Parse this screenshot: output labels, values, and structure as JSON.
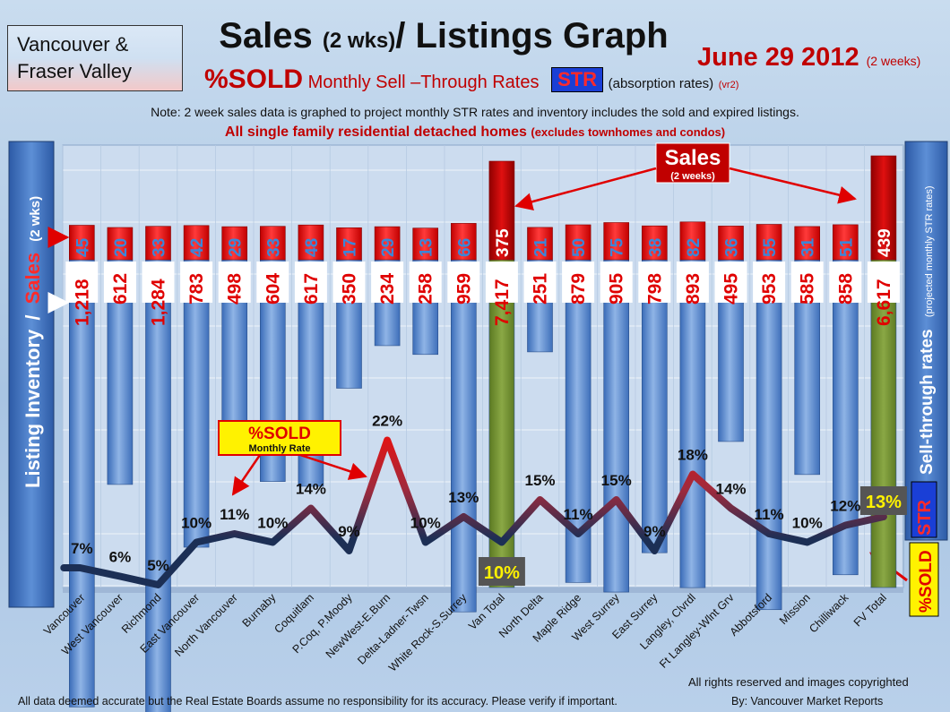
{
  "header": {
    "region": [
      "Vancouver &",
      "Fraser Valley"
    ],
    "title_main": "Sales",
    "title_small": "(2 wks)",
    "title_rest": "/ Listings Graph",
    "date": "June 29 2012",
    "date_note": "(2 weeks)",
    "subtitle_sold": "%SOLD",
    "subtitle_monthly": "Monthly Sell –Through Rates",
    "subtitle_str": "STR",
    "subtitle_absorption": "(absorption rates)",
    "subtitle_version": "(vr2)",
    "note": "Note: 2 week sales data is graphed to project monthly STR rates and inventory includes the sold and expired listings.",
    "family_main": "All single family residential detached homes",
    "family_excl": "(excludes townhomes and condos)"
  },
  "callouts": {
    "sales_title": "Sales",
    "sales_sub": "(2 weeks)",
    "sold_title": "%SOLD",
    "sold_sub": "Monthly Rate",
    "left_axis_inventory": "Listing Inventory",
    "left_axis_slash": "/",
    "left_axis_sales": "Sales",
    "left_axis_wks": "(2 wks)",
    "right_axis_main": "Sell-through rates",
    "right_axis_sub": "(projected monthly STR rates)",
    "right_str": "STR",
    "right_sold": "%SOLD"
  },
  "footer": {
    "disclaimer": "All data deemed accurate but the Real Estate Boards assume no responsibility for its accuracy.  Please verify if important.",
    "by": "By: Vancouver Market Reports",
    "copyright": "All rights reserved and  images copyrighted"
  },
  "colors": {
    "inventory_bar": "#4f81c9",
    "sales_bar": "#e00000",
    "total_inventory_bar": "#6f8e2e",
    "total_sales_bar": "#c00000",
    "line_high": "#d01010",
    "line_low": "#1c2f55"
  },
  "chart_data": {
    "type": "bar",
    "categories": [
      "Vancouver",
      "West Vancouver",
      "Richmond",
      "East Vancouver",
      "North Vancouver",
      "Burnaby",
      "Coquitlam",
      "P.Coq, P.Moody",
      "NewWest-E.Burn",
      "Delta-Ladner-Twsn",
      "White Rock-S.Surrey",
      "Van Total",
      "North Delta",
      "Maple Ridge",
      "West Surrey",
      "East Surrey",
      "Langley, Clvrdl",
      "Ft Langley-Wlnt Grv",
      "Abbotsford",
      "Mission",
      "Chilliwack",
      "FV Total"
    ],
    "series": [
      {
        "name": "Listing Inventory",
        "values": [
          1218,
          612,
          1284,
          783,
          498,
          604,
          617,
          350,
          234,
          258,
          959,
          7417,
          251,
          879,
          905,
          798,
          893,
          495,
          953,
          585,
          858,
          6617
        ],
        "labels": [
          "1,218",
          "612",
          "1,284",
          "783",
          "498",
          "604",
          "617",
          "350",
          "234",
          "258",
          "959",
          "7,417",
          "251",
          "879",
          "905",
          "798",
          "893",
          "495",
          "953",
          "585",
          "858",
          "6,617"
        ]
      },
      {
        "name": "Sales",
        "values": [
          45,
          20,
          33,
          42,
          29,
          33,
          48,
          17,
          29,
          13,
          66,
          375,
          21,
          50,
          75,
          38,
          82,
          36,
          55,
          31,
          51,
          439
        ]
      },
      {
        "name": "%SOLD",
        "values": [
          7,
          6,
          5,
          10,
          11,
          10,
          14,
          9,
          22,
          10,
          13,
          10,
          15,
          11,
          15,
          9,
          18,
          14,
          11,
          10,
          12,
          13
        ],
        "labels": [
          "7%",
          "6%",
          "5%",
          "10%",
          "11%",
          "10%",
          "14%",
          "9%",
          "22%",
          "10%",
          "13%",
          "10%",
          "15%",
          "11%",
          "15%",
          "9%",
          "18%",
          "14%",
          "11%",
          "10%",
          "12%",
          "13%"
        ]
      }
    ],
    "totals": [
      "Van Total",
      "FV Total"
    ],
    "legend": "none",
    "grid": true
  }
}
